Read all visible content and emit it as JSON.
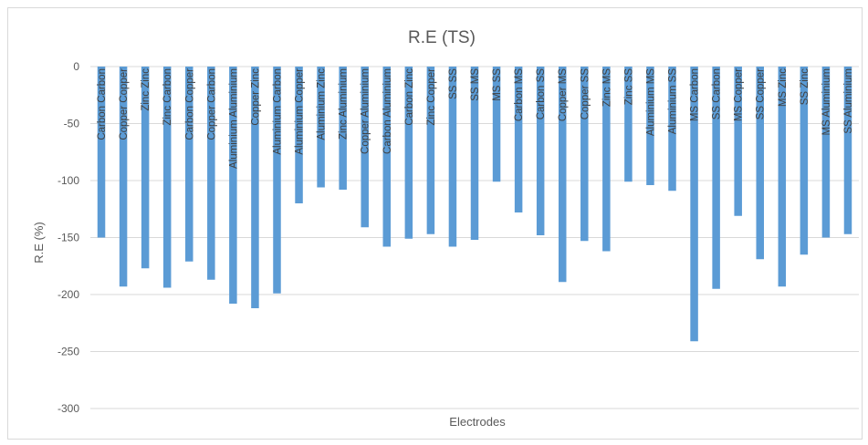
{
  "chart_data": {
    "type": "bar",
    "title": "R.E (TS)",
    "xlabel": "Electrodes",
    "ylabel": "R.E (%)",
    "ylim": [
      -300,
      0
    ],
    "yticks": [
      0,
      -50,
      -100,
      -150,
      -200,
      -250,
      -300
    ],
    "grid": true,
    "color": "#5b9bd5",
    "categories": [
      "Carbon Carbon",
      "Copper Copper",
      "Zinc Zinc",
      "Zinc Carbon",
      "Carbon Copper",
      "Copper Carbon",
      "Aluminium Aluminium",
      "Copper Zinc",
      "Aluminium Carbon",
      "Aluminium Copper",
      "Aluminium Zinc",
      "Zinc Aluminium",
      "Copper Aluminium",
      "Carbon Aluminium",
      "Carbon Zinc",
      "Zinc Copper",
      "SS SS",
      "SS MS",
      "MS SS",
      "Carbon MS",
      "Carbon SS",
      "Copper MS",
      "Copper SS",
      "Zinc MS",
      "Zinc SS",
      "Aluminium MS",
      "Aluminium SS",
      "MS Carbon",
      "SS Carbon",
      "MS Copper",
      "SS Copper",
      "MS Zinc",
      "SS Zinc",
      "MS Aluminium",
      "SS Aluminium"
    ],
    "values": [
      -150,
      -193,
      -177,
      -194,
      -171,
      -187,
      -208,
      -212,
      -199,
      -120,
      -106,
      -108,
      -141,
      -158,
      -151,
      -147,
      -158,
      -152,
      -101,
      -128,
      -148,
      -189,
      -153,
      -162,
      -101,
      -104,
      -109,
      -241,
      -195,
      -131,
      -169,
      -193,
      -165,
      -150,
      -147
    ]
  }
}
